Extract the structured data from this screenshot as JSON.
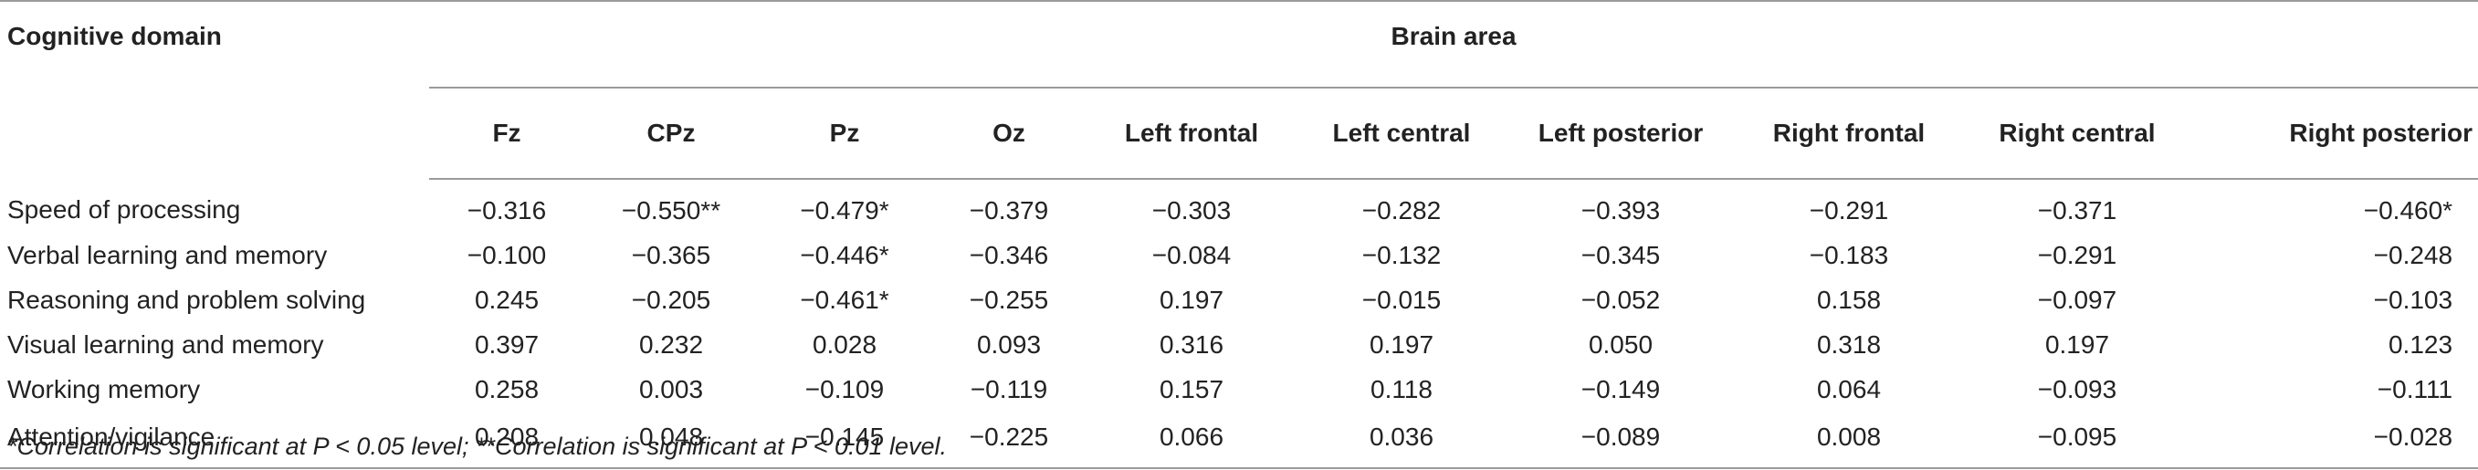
{
  "table": {
    "domain_header": "Cognitive domain",
    "group_header": "Brain area",
    "columns": [
      "Fz",
      "CPz",
      "Pz",
      "Oz",
      "Left frontal",
      "Left central",
      "Left posterior",
      "Right frontal",
      "Right central",
      "Right posterior"
    ],
    "rows": [
      {
        "label": "Speed of processing",
        "values": [
          "−0.316",
          "−0.550**",
          "−0.479*",
          "−0.379",
          "−0.303",
          "−0.282",
          "−0.393",
          "−0.291",
          "−0.371",
          "−0.460*"
        ]
      },
      {
        "label": "Verbal learning and memory",
        "values": [
          "−0.100",
          "−0.365",
          "−0.446*",
          "−0.346",
          "−0.084",
          "−0.132",
          "−0.345",
          "−0.183",
          "−0.291",
          "−0.248"
        ]
      },
      {
        "label": "Reasoning and problem solving",
        "values": [
          "0.245",
          "−0.205",
          "−0.461*",
          "−0.255",
          "0.197",
          "−0.015",
          "−0.052",
          "0.158",
          "−0.097",
          "−0.103"
        ]
      },
      {
        "label": "Visual learning and memory",
        "values": [
          "0.397",
          "0.232",
          "0.028",
          "0.093",
          "0.316",
          "0.197",
          "0.050",
          "0.318",
          "0.197",
          "0.123"
        ]
      },
      {
        "label": "Working memory",
        "values": [
          "0.258",
          "0.003",
          "−0.109",
          "−0.119",
          "0.157",
          "0.118",
          "−0.149",
          "0.064",
          "−0.093",
          "−0.111"
        ]
      },
      {
        "label": "Attention/vigilance",
        "values": [
          "0.208",
          "0.048",
          "−0.145",
          "−0.225",
          "0.066",
          "0.036",
          "−0.089",
          "0.008",
          "−0.095",
          "−0.028"
        ]
      }
    ],
    "footnote": "*Correlation is significant at P < 0.05 level; **Correlation is significant at P < 0.01 level."
  }
}
